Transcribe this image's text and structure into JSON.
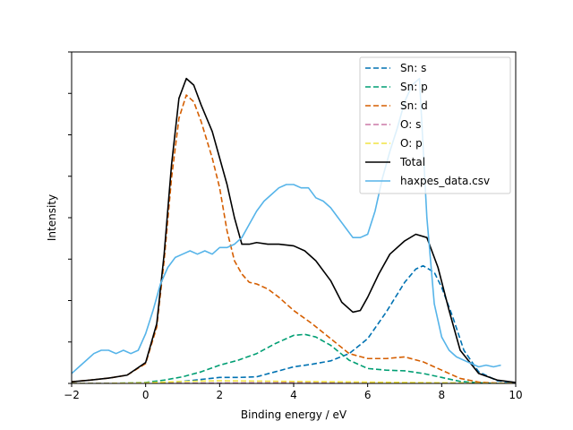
{
  "chart_data": {
    "type": "line",
    "xlabel": "Binding energy / eV",
    "ylabel": "Intensity",
    "xlim": [
      -2,
      10
    ],
    "ylim": [
      0,
      1
    ],
    "xticks": [
      -2,
      0,
      2,
      4,
      6,
      8,
      10
    ],
    "xtick_labels": [
      "−2",
      "0",
      "2",
      "4",
      "6",
      "8",
      "10"
    ],
    "yticks": [
      0.0,
      0.125,
      0.25,
      0.375,
      0.5,
      0.625,
      0.75,
      0.875,
      1.0
    ],
    "ytick_labels_shown": false,
    "grid": false,
    "legend_placement": "top-right",
    "series": [
      {
        "name": "Sn: s",
        "color": "#0072b2",
        "dash": "dashed",
        "x": [
          -2,
          -1,
          0,
          0.5,
          1,
          1.5,
          2,
          2.5,
          3,
          3.5,
          4,
          4.5,
          5,
          5.5,
          6,
          6.5,
          7,
          7.3,
          7.5,
          7.8,
          8,
          8.3,
          8.6,
          9,
          9.5,
          10
        ],
        "y": [
          0.0,
          0.0,
          0.0,
          0.002,
          0.006,
          0.012,
          0.018,
          0.018,
          0.02,
          0.035,
          0.05,
          0.058,
          0.068,
          0.09,
          0.135,
          0.215,
          0.305,
          0.345,
          0.355,
          0.335,
          0.29,
          0.2,
          0.1,
          0.035,
          0.008,
          0.002
        ]
      },
      {
        "name": "Sn: p",
        "color": "#009e73",
        "dash": "dashed",
        "x": [
          -2,
          -1,
          0,
          0.5,
          1,
          1.5,
          2,
          2.5,
          3,
          3.5,
          4,
          4.3,
          4.6,
          5,
          5.5,
          6,
          6.5,
          7,
          7.5,
          8,
          8.5,
          9,
          9.5,
          10
        ],
        "y": [
          0.0,
          0.0,
          0.003,
          0.01,
          0.02,
          0.035,
          0.055,
          0.07,
          0.09,
          0.12,
          0.145,
          0.148,
          0.14,
          0.115,
          0.07,
          0.045,
          0.04,
          0.038,
          0.03,
          0.018,
          0.006,
          0.002,
          0.0,
          0.0
        ]
      },
      {
        "name": "Sn: d",
        "color": "#d55e00",
        "dash": "dashed",
        "x": [
          -2,
          -1.5,
          -1,
          -0.5,
          0,
          0.3,
          0.5,
          0.7,
          0.9,
          1.1,
          1.3,
          1.5,
          1.8,
          2,
          2.2,
          2.4,
          2.6,
          2.8,
          3,
          3.3,
          3.6,
          4,
          4.5,
          5,
          5.5,
          6,
          6.5,
          7,
          7.5,
          8,
          8.5,
          9,
          9.5,
          10
        ],
        "y": [
          0.005,
          0.01,
          0.016,
          0.025,
          0.06,
          0.17,
          0.37,
          0.62,
          0.8,
          0.87,
          0.85,
          0.79,
          0.68,
          0.59,
          0.46,
          0.37,
          0.33,
          0.305,
          0.3,
          0.285,
          0.26,
          0.22,
          0.18,
          0.135,
          0.09,
          0.075,
          0.075,
          0.08,
          0.065,
          0.04,
          0.015,
          0.004,
          0.001,
          0.0
        ]
      },
      {
        "name": "O: s",
        "color": "#cc79a7",
        "dash": "dashed",
        "x": [
          -2,
          0,
          2,
          4,
          6,
          8,
          10
        ],
        "y": [
          0.0,
          0.0,
          0.001,
          0.002,
          0.002,
          0.001,
          0.0
        ]
      },
      {
        "name": "O: p",
        "color": "#f0e442",
        "dash": "dashed",
        "x": [
          -2,
          -1,
          0,
          0.5,
          1,
          2,
          3,
          4,
          5,
          6,
          7,
          8,
          9,
          10
        ],
        "y": [
          0.0,
          0.0,
          0.002,
          0.004,
          0.006,
          0.008,
          0.007,
          0.006,
          0.005,
          0.004,
          0.003,
          0.002,
          0.001,
          0.0
        ]
      },
      {
        "name": "Total",
        "color": "#000000",
        "dash": "solid",
        "x": [
          -2,
          -1.5,
          -1,
          -0.5,
          0,
          0.3,
          0.5,
          0.7,
          0.9,
          1.1,
          1.3,
          1.5,
          1.8,
          2,
          2.2,
          2.4,
          2.6,
          2.8,
          3,
          3.3,
          3.6,
          4,
          4.3,
          4.6,
          5,
          5.3,
          5.6,
          5.8,
          6,
          6.3,
          6.6,
          7,
          7.3,
          7.6,
          7.9,
          8.2,
          8.5,
          9,
          9.5,
          10
        ],
        "y": [
          0.005,
          0.01,
          0.016,
          0.025,
          0.063,
          0.18,
          0.39,
          0.66,
          0.86,
          0.92,
          0.9,
          0.84,
          0.76,
          0.68,
          0.6,
          0.5,
          0.42,
          0.42,
          0.425,
          0.42,
          0.42,
          0.415,
          0.4,
          0.37,
          0.31,
          0.245,
          0.215,
          0.22,
          0.26,
          0.33,
          0.39,
          0.43,
          0.45,
          0.44,
          0.35,
          0.22,
          0.1,
          0.03,
          0.01,
          0.003
        ]
      },
      {
        "name": "haxpes_data.csv",
        "color": "#56b4e9",
        "dash": "solid",
        "x": [
          -2,
          -1.8,
          -1.6,
          -1.4,
          -1.2,
          -1.0,
          -0.8,
          -0.6,
          -0.4,
          -0.2,
          0,
          0.2,
          0.4,
          0.6,
          0.8,
          1.0,
          1.2,
          1.4,
          1.6,
          1.8,
          2.0,
          2.2,
          2.4,
          2.6,
          2.8,
          3.0,
          3.2,
          3.4,
          3.6,
          3.8,
          4.0,
          4.2,
          4.4,
          4.6,
          4.8,
          5.0,
          5.2,
          5.4,
          5.6,
          5.8,
          6.0,
          6.2,
          6.4,
          6.6,
          6.8,
          7.0,
          7.2,
          7.4,
          7.6,
          7.8,
          8.0,
          8.2,
          8.4,
          8.6,
          8.8,
          9.0,
          9.2,
          9.4,
          9.6
        ],
        "y": [
          0.03,
          0.05,
          0.07,
          0.09,
          0.1,
          0.1,
          0.09,
          0.1,
          0.09,
          0.1,
          0.15,
          0.22,
          0.3,
          0.35,
          0.38,
          0.39,
          0.4,
          0.39,
          0.4,
          0.39,
          0.41,
          0.41,
          0.42,
          0.44,
          0.48,
          0.52,
          0.55,
          0.57,
          0.59,
          0.6,
          0.6,
          0.59,
          0.59,
          0.56,
          0.55,
          0.53,
          0.5,
          0.47,
          0.44,
          0.44,
          0.45,
          0.52,
          0.62,
          0.7,
          0.77,
          0.85,
          0.9,
          0.92,
          0.5,
          0.24,
          0.14,
          0.1,
          0.08,
          0.07,
          0.06,
          0.05,
          0.055,
          0.05,
          0.055
        ]
      }
    ]
  }
}
